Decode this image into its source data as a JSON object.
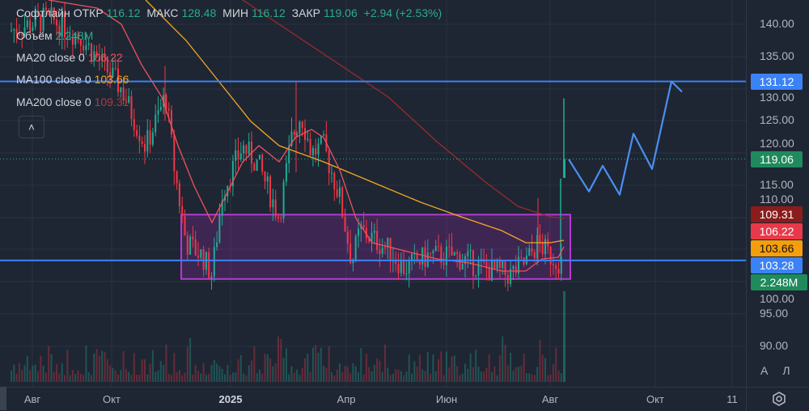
{
  "legend": {
    "symbol": "Софтлайн",
    "open_label": "ОТКР",
    "open": "116.12",
    "high_label": "МАКС",
    "high": "128.48",
    "low_label": "МИН",
    "low": "116.12",
    "close_label": "ЗАКР",
    "close": "119.06",
    "change": "+2.94 (+2.53%)",
    "volume_label": "Объём",
    "volume": "2.248M",
    "ma20_label": "MA20 close 0",
    "ma20": "106.22",
    "ma100_label": "MA100 close 0",
    "ma100": "103.66",
    "ma200_label": "MA200 close 0",
    "ma200": "109.31",
    "collapse": "˄"
  },
  "colors": {
    "up": "#22ab94",
    "down": "#f23645",
    "ma20": "#f0505f",
    "ma100": "#f5a623",
    "ma200": "#9c2a2a",
    "level": "#3b82f6",
    "zone": "#9c27b0",
    "projection": "#4a8ff0"
  },
  "chart_data": {
    "type": "candlestick",
    "symbol": "Софтлайн",
    "ylim": [
      86,
      143
    ],
    "y_ticks": [
      "140.00",
      "135.00",
      "130.00",
      "125.00",
      "120.00",
      "115.00",
      "110.00",
      "100.00",
      "95.00",
      "90.00"
    ],
    "x_ticks": [
      {
        "label": "Авг",
        "bold": false
      },
      {
        "label": "Окт",
        "bold": false
      },
      {
        "label": "2025",
        "bold": true
      },
      {
        "label": "Апр",
        "bold": false
      },
      {
        "label": "Июн",
        "bold": false
      },
      {
        "label": "Авг",
        "bold": false
      },
      {
        "label": "Окт",
        "bold": false
      },
      {
        "label": "11",
        "bold": false
      }
    ],
    "levels": [
      131.12,
      103.28
    ],
    "zone": {
      "top": 110.4,
      "bottom": 100.4
    },
    "price_labels": [
      {
        "value": "131.12",
        "price": 131.12,
        "color": "#3b82f6",
        "text": "#ffffff"
      },
      {
        "value": "119.06",
        "price": 119.06,
        "color": "#1f8a5c",
        "text": "#ffffff"
      },
      {
        "value": "109.31",
        "price": 109.31,
        "color": "#8a1c1c",
        "text": "#ffffff"
      },
      {
        "value": "106.22",
        "price": 106.22,
        "color": "#e8394b",
        "text": "#ffffff"
      },
      {
        "value": "103.66",
        "price": 103.66,
        "color": "#f59e0b",
        "text": "#111111"
      },
      {
        "value": "103.28",
        "price": 103.28,
        "color": "#3b82f6",
        "text": "#ffffff"
      },
      {
        "value": "2.248M",
        "price": 100.5,
        "color": "#1f8a5c",
        "text": "#ffffff"
      }
    ],
    "last_bar": {
      "open": 116.12,
      "high": 128.48,
      "low": 116.12,
      "close": 119.06,
      "volume": "2.248M"
    },
    "projection_prices": [
      119,
      114,
      118,
      113.5,
      123,
      117.5,
      131.12,
      129.5
    ]
  },
  "scale_mode": {
    "auto": "А",
    "log": "Л"
  }
}
